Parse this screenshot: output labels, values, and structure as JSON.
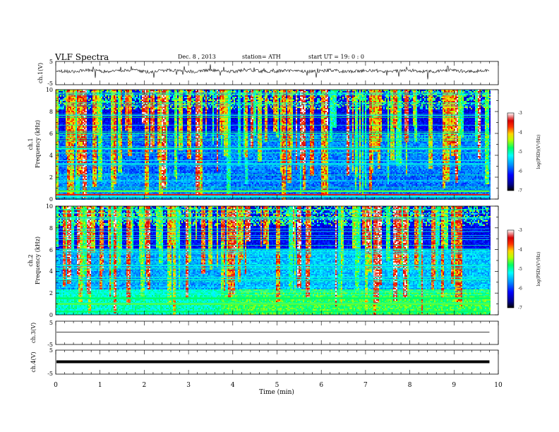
{
  "header": {
    "title": "VLF  Spectra",
    "date": "Dec. 8  , 2013",
    "station": "station= ATH",
    "start": "start  UT =    19: 0  : 0"
  },
  "colors": {
    "scale": [
      "#000000",
      "#00008b",
      "#0000ff",
      "#0090ff",
      "#00ffff",
      "#00ff66",
      "#b8ff00",
      "#ffd700",
      "#ff3300",
      "#d80000",
      "#ffffff"
    ]
  },
  "chart_data": [
    {
      "type": "line",
      "ylabel": "ch.1(V)",
      "ylim": [
        -5,
        5
      ],
      "yticks": [
        "5",
        "-5"
      ],
      "trace": "noisy signal near 0 V with impulsive spikes"
    },
    {
      "type": "heatmap",
      "ylabel": "ch.1\nFrequency  (kHz)",
      "ylim": [
        0,
        10
      ],
      "yticks": [
        "0",
        "2",
        "4",
        "6",
        "8",
        "10"
      ],
      "colorbar": {
        "label": "log(PSD)(V²/Hz)",
        "range": [
          -7,
          -3
        ],
        "ticks": [
          "-3",
          "-4",
          "-5",
          "-6",
          "-7"
        ]
      },
      "regime_change_min": 3.73
    },
    {
      "type": "heatmap",
      "ylabel": "ch.2\nFrequency  (kHz)",
      "ylim": [
        0,
        10
      ],
      "yticks": [
        "0",
        "2",
        "4",
        "6",
        "8",
        "10"
      ],
      "colorbar": {
        "label": "log(PSD)(V²/Hz)",
        "range": [
          -7,
          -3
        ],
        "ticks": [
          "-3",
          "-4",
          "-5",
          "-6",
          "-7"
        ]
      },
      "regime_change_min": 3.73
    },
    {
      "type": "line",
      "ylabel": "ch.3(V)",
      "ylim": [
        -5,
        5
      ],
      "yticks": [
        "5",
        "-5"
      ],
      "trace": "flat near 0 V"
    },
    {
      "type": "line",
      "ylabel": "ch.4(V)",
      "ylim": [
        -5,
        5
      ],
      "yticks": [
        "5",
        "-5"
      ],
      "trace": "thick flat band near 0 V"
    }
  ],
  "xaxis": {
    "label": "Time  (min)",
    "range": [
      0,
      10
    ],
    "ticks": [
      "0",
      "1",
      "2",
      "3",
      "4",
      "5",
      "6",
      "7",
      "8",
      "9",
      "10"
    ],
    "data_end_min": 9.8
  }
}
